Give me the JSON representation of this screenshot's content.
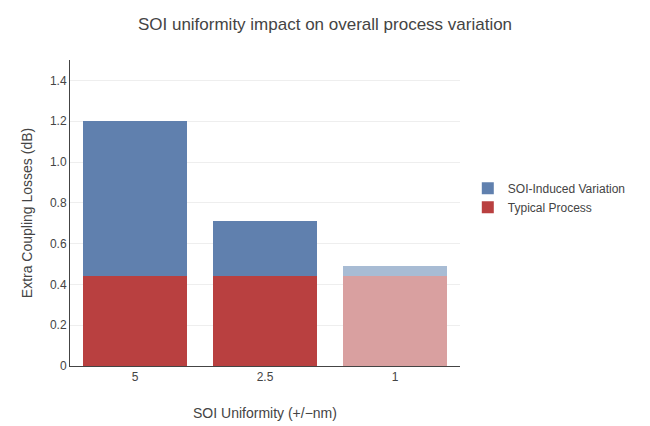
{
  "chart_data": {
    "type": "bar",
    "stacked": true,
    "title": "SOI uniformity impact on overall process variation",
    "xlabel": "SOI Uniformity (+/−nm)",
    "ylabel": "Extra Coupling Losses (dB)",
    "categories": [
      "5",
      "2.5",
      "1"
    ],
    "series": [
      {
        "name": "Typical Process",
        "colors": [
          "#b94040",
          "#b94040",
          "#d9a0a0"
        ],
        "values": [
          0.44,
          0.44,
          0.44
        ]
      },
      {
        "name": "SOI-Induced Variation",
        "colors": [
          "#6080ae",
          "#6080ae",
          "#a8bcd4"
        ],
        "values": [
          0.76,
          0.27,
          0.05
        ]
      }
    ],
    "ylim": [
      0,
      1.5
    ],
    "yticks": [
      0,
      0.2,
      0.4,
      0.6,
      0.8,
      {
        "value": 1.0,
        "label": "1.0"
      },
      1.2,
      1.4
    ],
    "grid": true,
    "legend": "right"
  }
}
